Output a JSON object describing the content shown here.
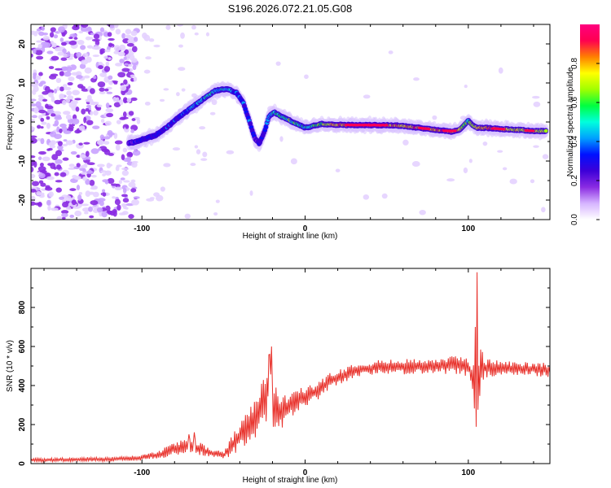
{
  "title": "S196.2026.072.21.05.G08",
  "chart_data": [
    {
      "type": "heatmap",
      "xlabel": "Height of straight line (km)",
      "ylabel": "Frequency (Hz)",
      "xlim": [
        -168,
        150
      ],
      "ylim": [
        -25,
        25
      ],
      "xticks": [
        -100,
        0,
        100
      ],
      "yticks": [
        -20,
        -10,
        0,
        10,
        20
      ],
      "colorbar": {
        "label": "Normalized spectral amplitude",
        "range": [
          0.0,
          1.0
        ],
        "ticks": [
          0.0,
          0.2,
          0.4,
          0.6,
          0.8
        ],
        "tick_labels": [
          "0.0",
          "0.2",
          "0.4",
          "0.6",
          "0.8"
        ],
        "colors": [
          "#ffffff",
          "#d6b4ff",
          "#8a2be2",
          "#3d00d8",
          "#0010ff",
          "#00a0ff",
          "#00ffdd",
          "#00ff40",
          "#a0ff00",
          "#ffff00",
          "#ff8000",
          "#ff0050",
          "#ff007f"
        ]
      },
      "ridge": {
        "x": [
          -108,
          -100,
          -92,
          -85,
          -78,
          -70,
          -62,
          -55,
          -48,
          -42,
          -38,
          -34,
          -31,
          -28,
          -25,
          -22,
          -19,
          -15,
          -10,
          -5,
          0,
          5,
          10,
          20,
          30,
          40,
          50,
          60,
          70,
          80,
          90,
          95,
          100,
          103,
          106,
          110,
          120,
          130,
          140,
          148
        ],
        "y": [
          -5.5,
          -4.5,
          -3.5,
          -1.5,
          1,
          3.5,
          6,
          8,
          8.5,
          7.5,
          5,
          0,
          -4,
          -5.5,
          -2.5,
          1.5,
          2.5,
          1.5,
          0.5,
          -0.5,
          -1.5,
          -1,
          -0.5,
          -0.7,
          -0.8,
          -0.8,
          -0.8,
          -1,
          -1.5,
          -2,
          -2.5,
          -2,
          0.5,
          -1,
          -1.5,
          -1.5,
          -1.8,
          -2,
          -2.3,
          -2.3
        ],
        "amplitude": [
          0.3,
          0.32,
          0.35,
          0.38,
          0.4,
          0.45,
          0.5,
          0.55,
          0.5,
          0.45,
          0.4,
          0.35,
          0.3,
          0.3,
          0.35,
          0.45,
          0.55,
          0.6,
          0.65,
          0.6,
          0.55,
          0.6,
          0.7,
          0.85,
          0.95,
          0.95,
          0.9,
          0.85,
          0.9,
          0.88,
          0.92,
          0.75,
          0.6,
          0.7,
          0.8,
          0.9,
          0.85,
          0.8,
          0.75,
          0.7
        ]
      }
    },
    {
      "type": "line",
      "xlabel": "Height of straight line (km)",
      "ylabel": "SNR (10 * v/v)",
      "xlim": [
        -168,
        150
      ],
      "ylim": [
        0,
        1000
      ],
      "xticks": [
        -100,
        0,
        100
      ],
      "yticks": [
        0,
        200,
        400,
        600,
        800
      ],
      "color": "#e8302a",
      "envelope": {
        "x": [
          -168,
          -120,
          -100,
          -90,
          -80,
          -70,
          -60,
          -50,
          -45,
          -40,
          -35,
          -30,
          -25,
          -22,
          -20,
          -15,
          -10,
          -5,
          0,
          5,
          10,
          15,
          20,
          25,
          30,
          40,
          50,
          60,
          70,
          80,
          90,
          95,
          100,
          103,
          105,
          107,
          110,
          120,
          130,
          140,
          150
        ],
        "y": [
          18,
          22,
          30,
          45,
          75,
          95,
          60,
          40,
          90,
          140,
          180,
          240,
          320,
          420,
          300,
          260,
          300,
          320,
          340,
          360,
          390,
          420,
          440,
          460,
          480,
          490,
          495,
          495,
          500,
          500,
          505,
          505,
          500,
          430,
          250,
          470,
          490,
          490,
          485,
          485,
          480
        ],
        "noise": [
          10,
          12,
          14,
          20,
          35,
          45,
          25,
          20,
          50,
          70,
          90,
          110,
          130,
          160,
          120,
          90,
          70,
          60,
          55,
          50,
          50,
          45,
          40,
          40,
          38,
          38,
          38,
          40,
          40,
          42,
          45,
          50,
          55,
          90,
          120,
          150,
          50,
          40,
          38,
          38,
          38
        ]
      },
      "spikes": [
        {
          "x": 105.5,
          "y": 980
        },
        {
          "x": 104.5,
          "y": 700
        },
        {
          "x": -20.5,
          "y": 600
        },
        {
          "x": -21.5,
          "y": 560
        },
        {
          "x": -71,
          "y": 150
        },
        {
          "x": -68,
          "y": 160
        }
      ]
    }
  ]
}
